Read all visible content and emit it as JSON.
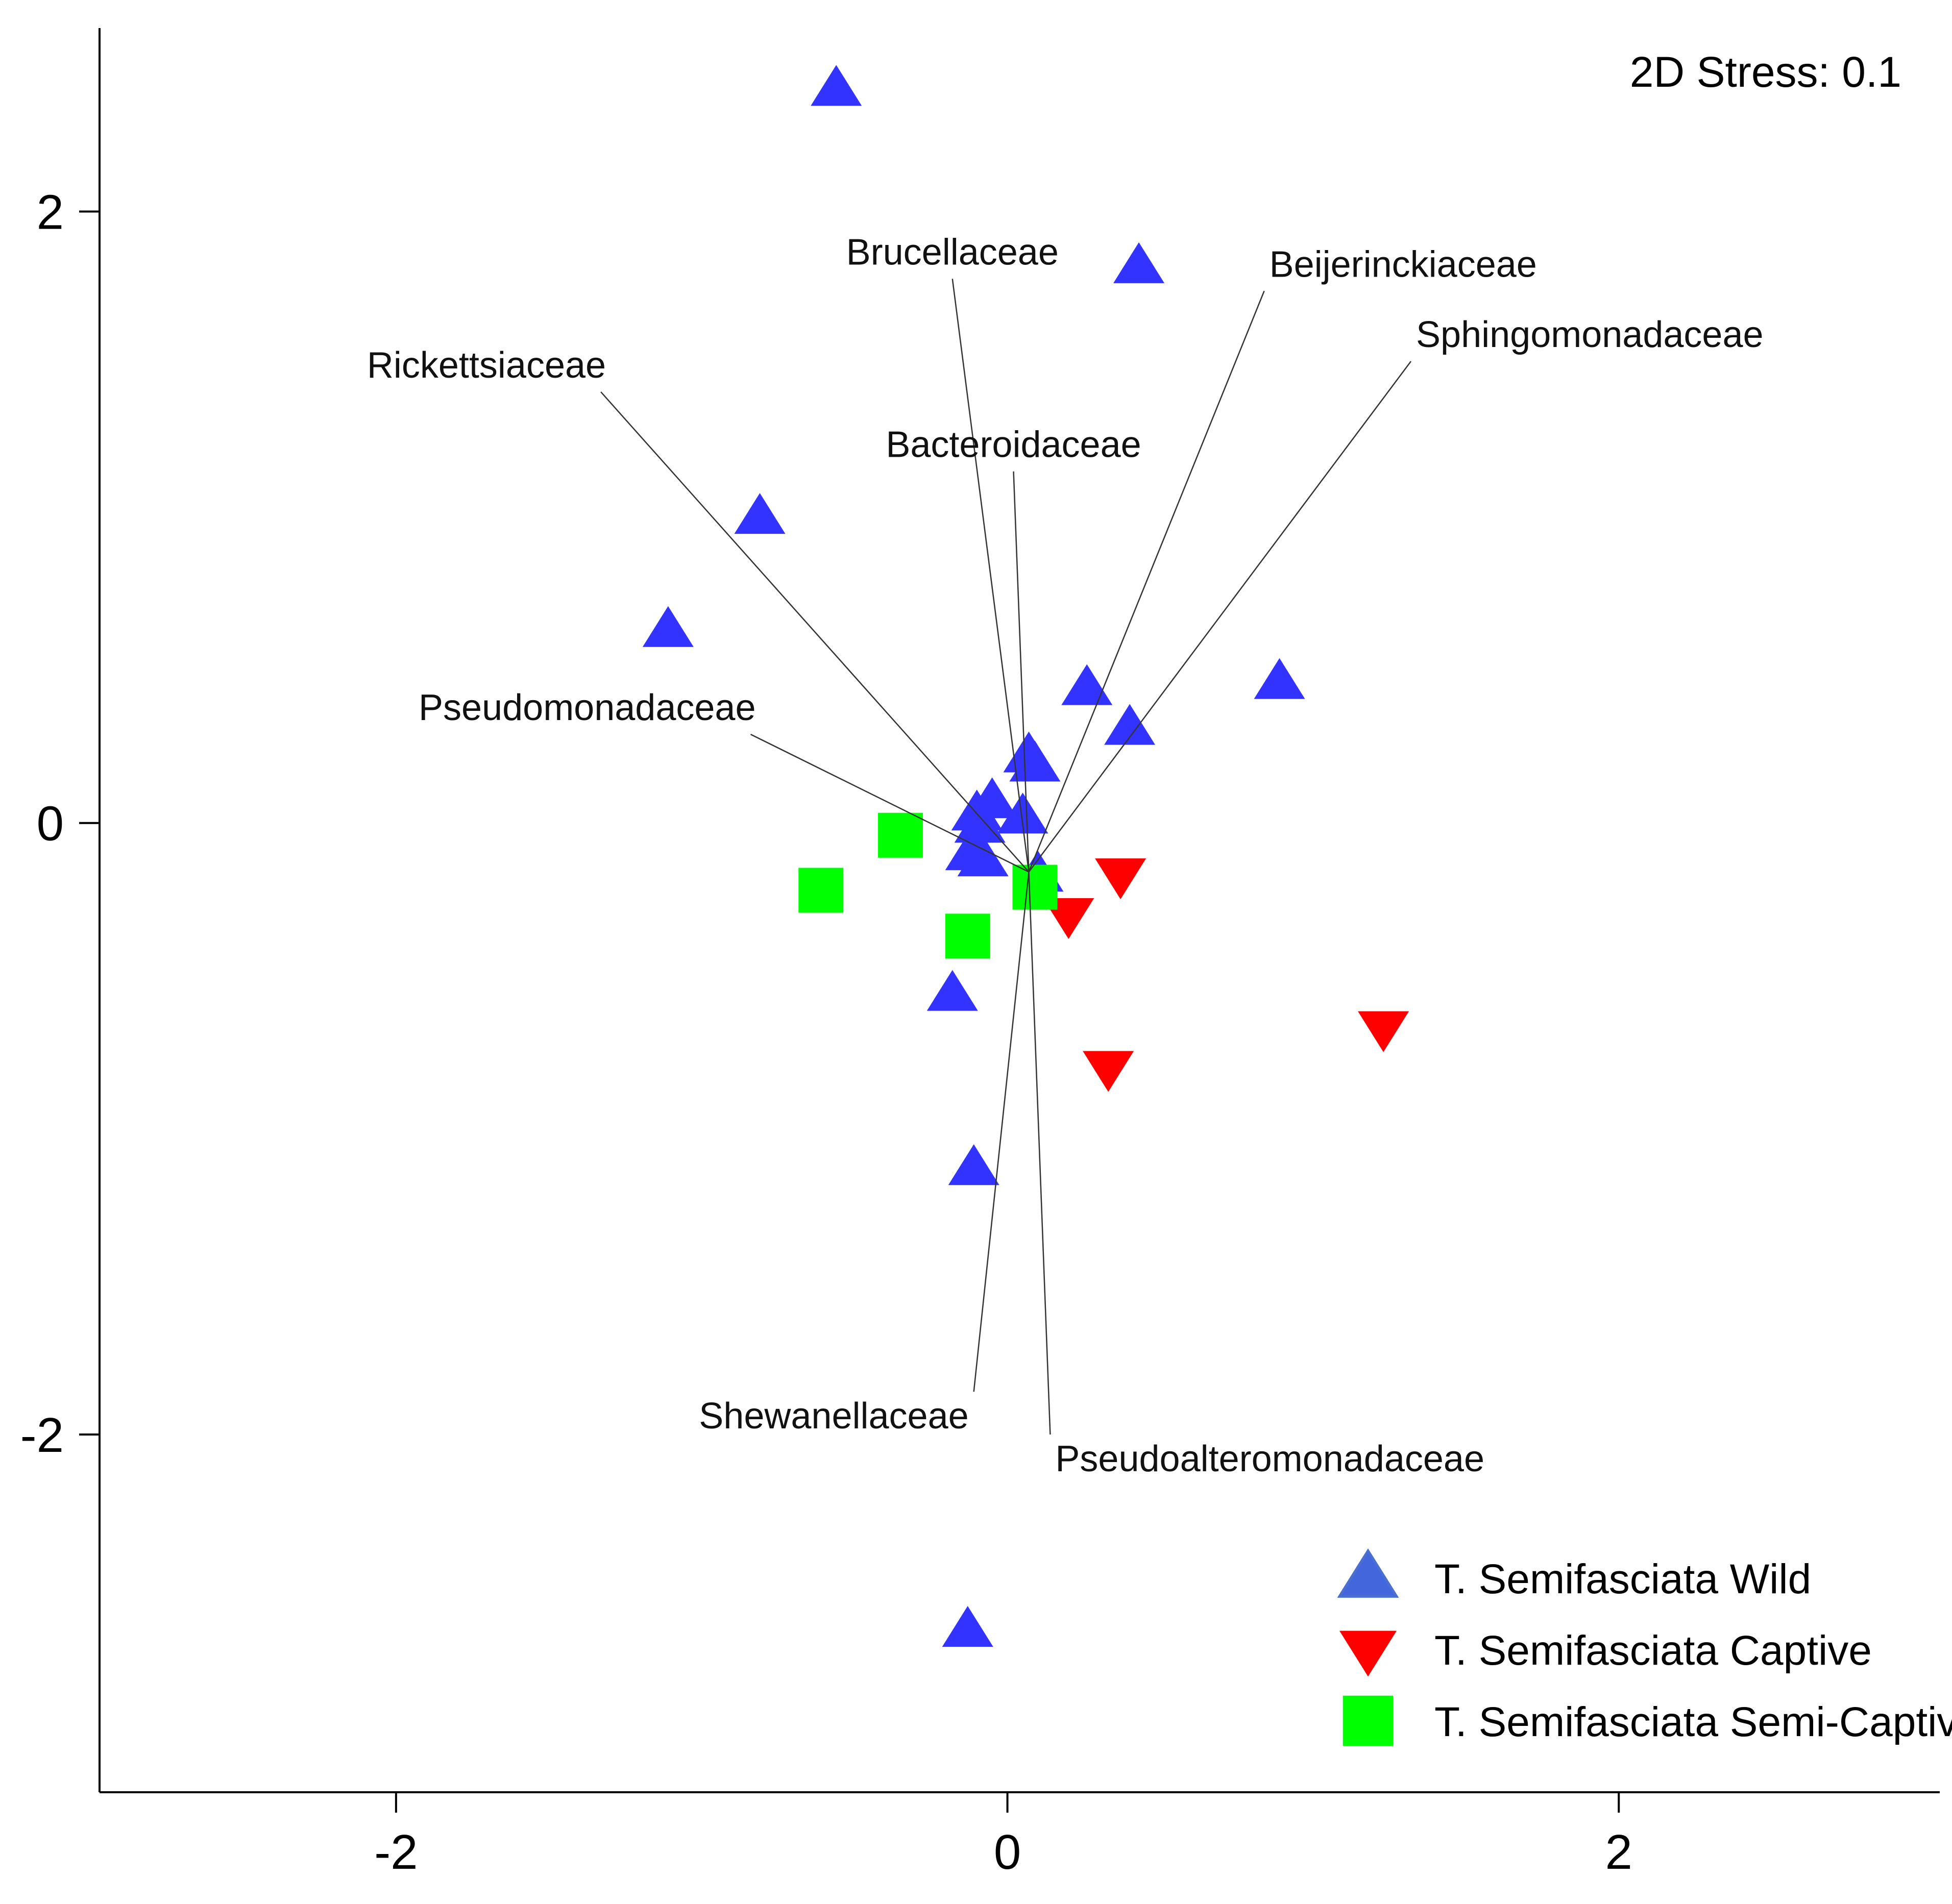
{
  "chart_data": {
    "type": "scatter",
    "title": "",
    "xlabel": "",
    "ylabel": "",
    "xlim": [
      -2.97,
      3.05
    ],
    "ylim": [
      -3.17,
      2.6
    ],
    "x_ticks": [
      -2,
      0,
      2
    ],
    "y_ticks": [
      -2,
      0,
      2
    ],
    "x_tick_labels": [
      "-2",
      "0",
      "2"
    ],
    "y_tick_labels": [
      "-2",
      "0",
      "2"
    ],
    "grid": false,
    "stress_label": "2D Stress: 0.1",
    "legend_position": "bottom-right",
    "series": [
      {
        "name": "T. Semifasciata Wild",
        "marker": "triangle-up",
        "color": "#3333ff",
        "points": [
          {
            "x": -0.56,
            "y": 2.4
          },
          {
            "x": 0.43,
            "y": 1.82
          },
          {
            "x": -0.81,
            "y": 1.0
          },
          {
            "x": -1.11,
            "y": 0.63
          },
          {
            "x": 0.26,
            "y": 0.44
          },
          {
            "x": 0.89,
            "y": 0.46
          },
          {
            "x": 0.4,
            "y": 0.31
          },
          {
            "x": 0.09,
            "y": 0.19
          },
          {
            "x": 0.07,
            "y": 0.22
          },
          {
            "x": -0.05,
            "y": 0.07
          },
          {
            "x": 0.05,
            "y": 0.02
          },
          {
            "x": -0.1,
            "y": 0.03
          },
          {
            "x": -0.09,
            "y": -0.01
          },
          {
            "x": -0.12,
            "y": -0.1
          },
          {
            "x": -0.08,
            "y": -0.12
          },
          {
            "x": 0.1,
            "y": -0.17
          },
          {
            "x": -0.18,
            "y": -0.56
          },
          {
            "x": -0.11,
            "y": -1.13
          },
          {
            "x": -0.13,
            "y": -2.64
          }
        ]
      },
      {
        "name": "T. Semifasciata Captive",
        "marker": "triangle-down",
        "color": "#ff0000",
        "points": [
          {
            "x": 0.37,
            "y": -0.17
          },
          {
            "x": 0.2,
            "y": -0.3
          },
          {
            "x": 1.23,
            "y": -0.67
          },
          {
            "x": 0.33,
            "y": -0.8
          }
        ]
      },
      {
        "name": "T. Semifasciata Semi-Captive",
        "marker": "square",
        "color": "#00ff00",
        "points": [
          {
            "x": -0.35,
            "y": -0.04
          },
          {
            "x": -0.61,
            "y": -0.22
          },
          {
            "x": 0.09,
            "y": -0.21
          },
          {
            "x": -0.13,
            "y": -0.37
          }
        ]
      }
    ],
    "vector_origin": {
      "x": 0.07,
      "y": -0.16
    },
    "vectors": [
      {
        "name": "Brucellaceae",
        "end": {
          "x": -0.18,
          "y": 1.78
        }
      },
      {
        "name": "Beijerinckiaceae",
        "end": {
          "x": 0.84,
          "y": 1.74
        }
      },
      {
        "name": "Sphingomonadaceae",
        "end": {
          "x": 1.32,
          "y": 1.51
        }
      },
      {
        "name": "Rickettsiaceae",
        "end": {
          "x": -1.33,
          "y": 1.41
        }
      },
      {
        "name": "Bacteroidaceae",
        "end": {
          "x": 0.02,
          "y": 1.15
        }
      },
      {
        "name": "Pseudomonadaceae",
        "end": {
          "x": -0.84,
          "y": 0.29
        }
      },
      {
        "name": "Shewanellaceae",
        "end": {
          "x": -0.11,
          "y": -1.86
        }
      },
      {
        "name": "Pseudoalteromonadaceae",
        "end": {
          "x": 0.14,
          "y": -2.0
        }
      }
    ]
  }
}
